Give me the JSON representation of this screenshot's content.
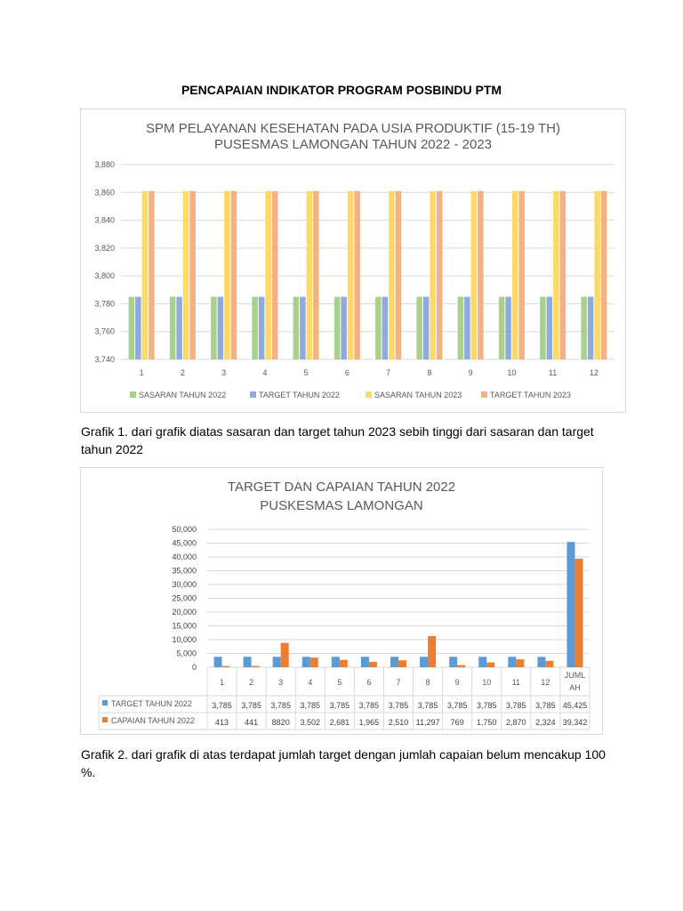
{
  "document": {
    "heading": "PENCAPAIAN INDIKATOR PROGRAM POSBINDU PTM",
    "caption1": "Grafik 1. dari grafik diatas sasaran dan target tahun 2023 sebih tinggi dari sasaran dan target tahun 2022",
    "caption2": "Grafik 2. dari grafik di atas terdapat jumlah target dengan jumlah capaian belum mencakup 100 %."
  },
  "chart_data": [
    {
      "type": "bar",
      "title": [
        "SPM PELAYANAN KESEHATAN PADA USIA PRODUKTIF (15-19 TH)",
        "PUSESMAS LAMONGAN TAHUN 2022 - 2023"
      ],
      "categories": [
        "1",
        "2",
        "3",
        "4",
        "5",
        "6",
        "7",
        "8",
        "9",
        "10",
        "11",
        "12"
      ],
      "ylim": [
        3740,
        3880
      ],
      "yticks": [
        "3,740",
        "3,760",
        "3,780",
        "3,800",
        "3,820",
        "3,840",
        "3,860",
        "3,880"
      ],
      "grid": true,
      "legend": "bottom",
      "series": [
        {
          "name": "SASARAN TAHUN 2022",
          "color": "#a9d18e",
          "values": [
            3785,
            3785,
            3785,
            3785,
            3785,
            3785,
            3785,
            3785,
            3785,
            3785,
            3785,
            3785
          ]
        },
        {
          "name": "TARGET TAHUN 2022",
          "color": "#8faadc",
          "values": [
            3785,
            3785,
            3785,
            3785,
            3785,
            3785,
            3785,
            3785,
            3785,
            3785,
            3785,
            3785
          ]
        },
        {
          "name": "SASARAN TAHUN 2023",
          "color": "#ffd966",
          "values": [
            3861,
            3861,
            3861,
            3861,
            3861,
            3861,
            3861,
            3861,
            3861,
            3861,
            3861,
            3861
          ]
        },
        {
          "name": "TARGET TAHUN 2023",
          "color": "#f4b183",
          "values": [
            3861,
            3861,
            3861,
            3861,
            3861,
            3861,
            3861,
            3861,
            3861,
            3861,
            3861,
            3861
          ]
        }
      ]
    },
    {
      "type": "bar",
      "title": [
        "TARGET DAN CAPAIAN TAHUN 2022",
        "PUSKESMAS LAMONGAN"
      ],
      "categories": [
        "1",
        "2",
        "3",
        "4",
        "5",
        "6",
        "7",
        "8",
        "9",
        "10",
        "11",
        "12",
        "JUMLAH"
      ],
      "category_label_lines": [
        [
          "1"
        ],
        [
          "2"
        ],
        [
          "3"
        ],
        [
          "4"
        ],
        [
          "5"
        ],
        [
          "6"
        ],
        [
          "7"
        ],
        [
          "8"
        ],
        [
          "9"
        ],
        [
          "10"
        ],
        [
          "11"
        ],
        [
          "12"
        ],
        [
          "JUML",
          "AH"
        ]
      ],
      "ylim": [
        0,
        50000
      ],
      "yticks": [
        "0",
        "5,000",
        "10,000",
        "15,000",
        "20,000",
        "25,000",
        "30,000",
        "35,000",
        "40,000",
        "45,000",
        "50,000"
      ],
      "grid": true,
      "legend": "data-table",
      "series": [
        {
          "name": "TARGET TAHUN 2022",
          "color": "#5b9bd5",
          "values": [
            3785,
            3785,
            3785,
            3785,
            3785,
            3785,
            3785,
            3785,
            3785,
            3785,
            3785,
            3785,
            45425
          ],
          "labels": [
            "3,785",
            "3,785",
            "3,785",
            "3,785",
            "3,785",
            "3,785",
            "3,785",
            "3,785",
            "3,785",
            "3,785",
            "3,785",
            "3,785",
            "45,425"
          ]
        },
        {
          "name": "CAPAIAN TAHUN 2022",
          "color": "#ed7d31",
          "values": [
            413,
            441,
            8820,
            3502,
            2681,
            1965,
            2510,
            11297,
            769,
            1750,
            2870,
            2324,
            39342
          ],
          "labels": [
            "413",
            "441",
            "8820",
            "3,502",
            "2,681",
            "1,965",
            "2,510",
            "11,297",
            "769",
            "1,750",
            "2,870",
            "2,324",
            "39,342"
          ]
        }
      ]
    }
  ]
}
